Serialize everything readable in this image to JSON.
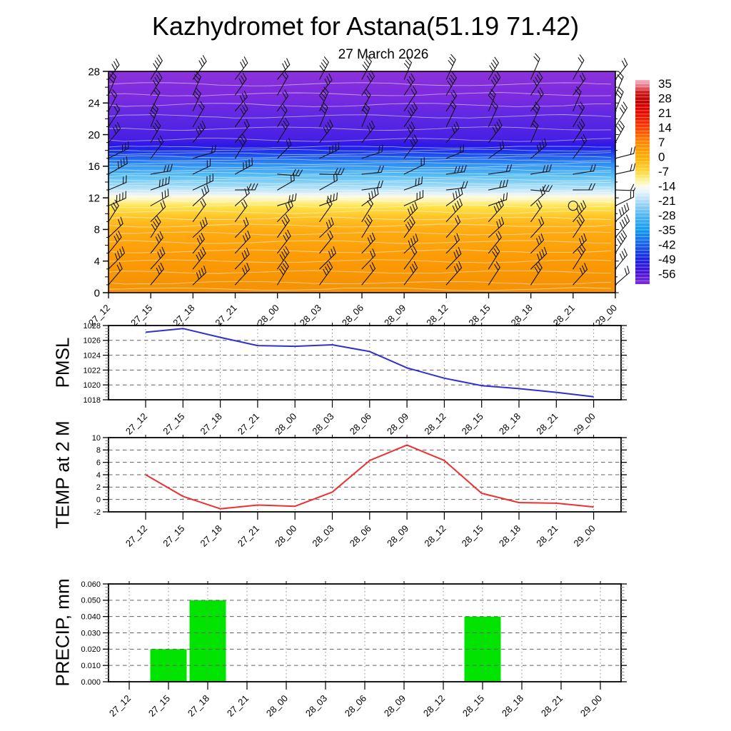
{
  "title": "Kazhydromet for Astana(51.19 71.42)",
  "subtitle": "27 March 2026",
  "time_labels": [
    "27_12",
    "27_15",
    "27_18",
    "27_21",
    "28_00",
    "28_03",
    "28_06",
    "28_09",
    "28_12",
    "28_15",
    "28_18",
    "28_21",
    "29_00"
  ],
  "colors": {
    "pmsl_line": "#3030CC",
    "temp_line": "#EE3030",
    "precip_bar": "#00E400",
    "axis": "#000000",
    "grid_horizontal": "#606060",
    "grid_vertical": "#8A8A8A",
    "contour_lines": "rgba(255,255,255,0.55)",
    "wind_barbs": "#141414"
  },
  "cross_section": {
    "height_ticks_km": [
      0,
      4,
      8,
      12,
      16,
      20,
      24,
      28
    ],
    "ylim_km": [
      0,
      28
    ],
    "wind_barb_levels_km": [
      1,
      3,
      5,
      7,
      9,
      11,
      13,
      15,
      17,
      19,
      21,
      23,
      25,
      27
    ],
    "calm_symbol": {
      "name": "calm-wind-circle",
      "time": "28_21",
      "height_km": 11
    },
    "background_gradient_stops": [
      {
        "f": 0.0,
        "c": "#8C32DC"
      },
      {
        "f": 0.12,
        "c": "#7A2ADF"
      },
      {
        "f": 0.2,
        "c": "#5F28E2"
      },
      {
        "f": 0.3,
        "c": "#4A20E4"
      },
      {
        "f": 0.335,
        "c": "#2B18E6"
      },
      {
        "f": 0.355,
        "c": "#1B2BEA"
      },
      {
        "f": 0.385,
        "c": "#1E5BEF"
      },
      {
        "f": 0.42,
        "c": "#2F8FF3"
      },
      {
        "f": 0.47,
        "c": "#55BDF3"
      },
      {
        "f": 0.515,
        "c": "#9AD9F6"
      },
      {
        "f": 0.55,
        "c": "#DDF0FA"
      },
      {
        "f": 0.565,
        "c": "#FDFBE6"
      },
      {
        "f": 0.585,
        "c": "#FFF3A6"
      },
      {
        "f": 0.61,
        "c": "#FFE44E"
      },
      {
        "f": 0.655,
        "c": "#FFC628"
      },
      {
        "f": 0.72,
        "c": "#FFAB12"
      },
      {
        "f": 0.85,
        "c": "#FB9A05"
      },
      {
        "f": 1.0,
        "c": "#F59103"
      }
    ],
    "colorbar": {
      "ticks": [
        35,
        28,
        21,
        14,
        7,
        0,
        -7,
        -14,
        -21,
        -28,
        -35,
        -42,
        -49,
        -56
      ],
      "gradient_stops": [
        {
          "f": 0.0,
          "c": "#F5B6C6"
        },
        {
          "f": 0.03,
          "c": "#E87586"
        },
        {
          "f": 0.06,
          "c": "#CE1A1A"
        },
        {
          "f": 0.1,
          "c": "#BE0000"
        },
        {
          "f": 0.16,
          "c": "#E80800"
        },
        {
          "f": 0.23,
          "c": "#FC3C00"
        },
        {
          "f": 0.3,
          "c": "#FF8400"
        },
        {
          "f": 0.38,
          "c": "#FFAE00"
        },
        {
          "f": 0.45,
          "c": "#FFD83E"
        },
        {
          "f": 0.49,
          "c": "#FEF294"
        },
        {
          "f": 0.52,
          "c": "#FBFBEA"
        },
        {
          "f": 0.545,
          "c": "#EAF5FB"
        },
        {
          "f": 0.59,
          "c": "#B4DEF8"
        },
        {
          "f": 0.66,
          "c": "#52B8F2"
        },
        {
          "f": 0.735,
          "c": "#129AEE"
        },
        {
          "f": 0.8,
          "c": "#1766EA"
        },
        {
          "f": 0.875,
          "c": "#1726E2"
        },
        {
          "f": 0.94,
          "c": "#4412D6"
        },
        {
          "f": 1.0,
          "c": "#7D2BD9"
        }
      ]
    }
  },
  "chart_data": [
    {
      "type": "heatmap",
      "name": "wind-temperature-time-height-cross-section",
      "categories": [
        "27_12",
        "27_15",
        "27_18",
        "27_21",
        "28_00",
        "28_03",
        "28_06",
        "28_09",
        "28_12",
        "28_15",
        "28_18",
        "28_21",
        "29_00"
      ],
      "y_ticks_km": [
        0,
        4,
        8,
        12,
        16,
        20,
        24,
        28
      ],
      "ylim": [
        0,
        28
      ],
      "legend": "temperature colorbar 35 to -56, step 7",
      "notes": "black station wind barbs at 13 times x 14 levels, thin white temperature contour lines, calm circle near 28_21 at ~11 km"
    },
    {
      "type": "line",
      "name": "PMSL",
      "color": "#3030CC",
      "categories": [
        "27_12",
        "27_15",
        "27_18",
        "27_21",
        "28_00",
        "28_03",
        "28_06",
        "28_09",
        "28_12",
        "28_15",
        "28_18",
        "28_21",
        "29_00"
      ],
      "values": [
        1027.1,
        1027.6,
        1026.4,
        1025.3,
        1025.2,
        1025.4,
        1024.5,
        1022.3,
        1020.9,
        1019.9,
        1019.5,
        1019.0,
        1018.4
      ],
      "ylim": [
        1018,
        1028
      ],
      "ytick_step": 2,
      "grid": true
    },
    {
      "type": "line",
      "name": "TEMP at 2 M",
      "color": "#EE3030",
      "categories": [
        "27_12",
        "27_15",
        "27_18",
        "27_21",
        "28_00",
        "28_03",
        "28_06",
        "28_09",
        "28_12",
        "28_15",
        "28_18",
        "28_21",
        "29_00"
      ],
      "values": [
        4.0,
        0.5,
        -1.5,
        -0.9,
        -1.1,
        1.2,
        6.3,
        8.8,
        6.3,
        1.0,
        -0.5,
        -0.6,
        -1.2
      ],
      "ylim": [
        -2,
        10
      ],
      "ytick_step": 2,
      "grid": true
    },
    {
      "type": "bar",
      "name": "PRECIP, mm",
      "color": "#00E400",
      "categories": [
        "27_12",
        "27_15",
        "27_18",
        "27_21",
        "28_00",
        "28_03",
        "28_06",
        "28_09",
        "28_12",
        "28_15",
        "28_18",
        "28_21",
        "29_00"
      ],
      "values": [
        0,
        0.02,
        0.05,
        0,
        0,
        0,
        0,
        0,
        0,
        0.04,
        0,
        0,
        0
      ],
      "ylim": [
        0,
        0.06
      ],
      "ytick_step": 0.01,
      "ytick_decimals": 3,
      "grid": true
    }
  ]
}
